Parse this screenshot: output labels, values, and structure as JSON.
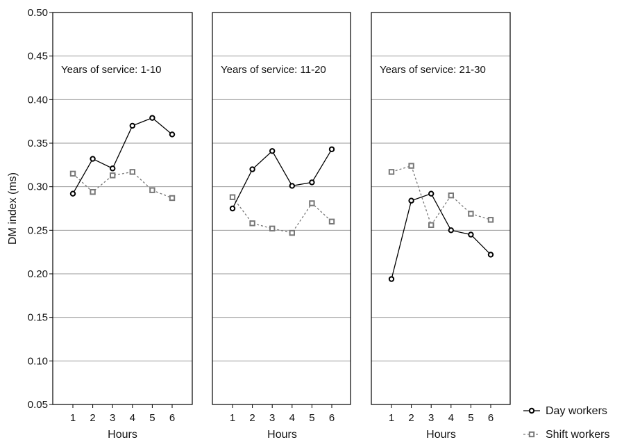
{
  "chart_data": {
    "type": "line",
    "ylabel": "DM index (ms)",
    "ylim": [
      0.05,
      0.5
    ],
    "yticks": [
      "0.05",
      "0.10",
      "0.15",
      "0.20",
      "0.25",
      "0.30",
      "0.35",
      "0.40",
      "0.45",
      "0.50"
    ],
    "x": [
      1,
      2,
      3,
      4,
      5,
      6
    ],
    "xticks": [
      "1",
      "2",
      "3",
      "4",
      "5",
      "6"
    ],
    "grid": true,
    "legend_position": "bottom-right",
    "legend": [
      {
        "name": "Day workers",
        "color": "#000000",
        "style": "solid",
        "marker": "circle"
      },
      {
        "name": "Shift workers",
        "color": "#777777",
        "style": "dashed",
        "marker": "square"
      }
    ],
    "panels": [
      {
        "title": "Years of service: 1-10",
        "xlabel": "Hours",
        "series": [
          {
            "name": "Day workers",
            "values": [
              0.292,
              0.332,
              0.321,
              0.37,
              0.379,
              0.36
            ]
          },
          {
            "name": "Shift workers",
            "values": [
              0.315,
              0.294,
              0.313,
              0.317,
              0.296,
              0.287
            ]
          }
        ]
      },
      {
        "title": "Years of service: 11-20",
        "xlabel": "Hours",
        "series": [
          {
            "name": "Day workers",
            "values": [
              0.275,
              0.32,
              0.341,
              0.301,
              0.305,
              0.343
            ]
          },
          {
            "name": "Shift workers",
            "values": [
              0.288,
              0.258,
              0.252,
              0.247,
              0.281,
              0.26
            ]
          }
        ]
      },
      {
        "title": "Years of service: 21-30",
        "xlabel": "Hours",
        "series": [
          {
            "name": "Day workers",
            "values": [
              0.194,
              0.284,
              0.292,
              0.25,
              0.245,
              0.222
            ]
          },
          {
            "name": "Shift workers",
            "values": [
              0.317,
              0.324,
              0.256,
              0.29,
              0.269,
              0.262
            ]
          }
        ]
      }
    ]
  }
}
